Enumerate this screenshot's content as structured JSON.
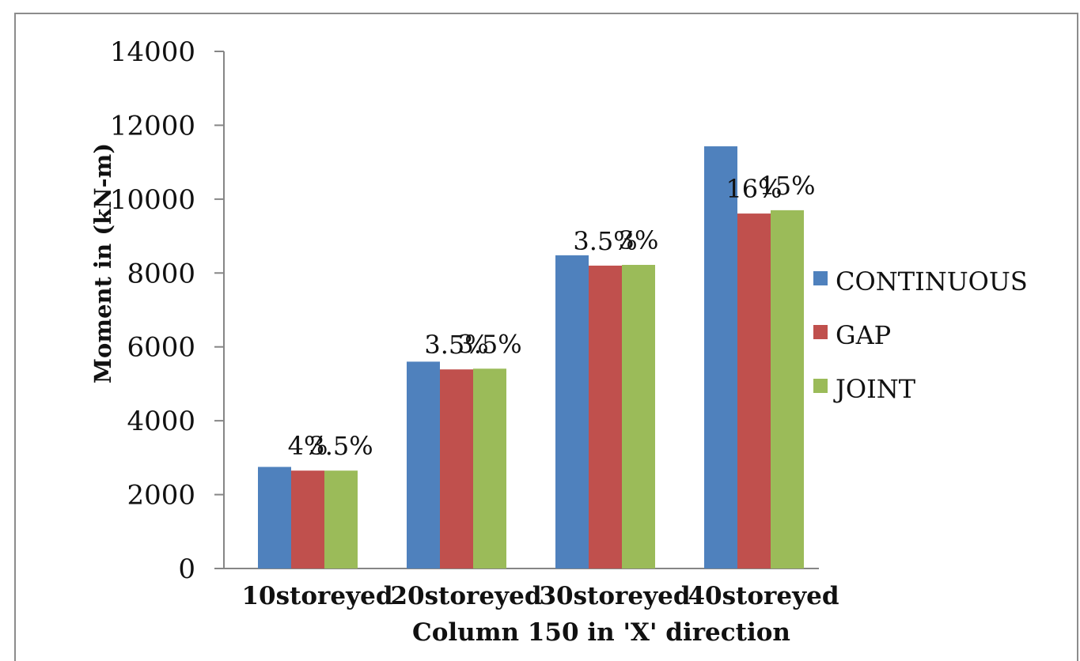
{
  "chart_data": {
    "type": "bar",
    "title": "",
    "xlabel": "Column 150 in 'X' direction",
    "ylabel": "Moment in (kN-m)",
    "ylim": [
      0,
      14000
    ],
    "yticks": [
      0,
      2000,
      4000,
      6000,
      8000,
      10000,
      12000,
      14000
    ],
    "categories": [
      "10storeyed",
      "20storeyed",
      "30storeyed",
      "40storeyed"
    ],
    "series": [
      {
        "name": "CONTINUOUS",
        "color": "#4F81BD",
        "values": [
          2750,
          5600,
          8480,
          11430
        ]
      },
      {
        "name": "GAP",
        "color": "#C0504D",
        "values": [
          2650,
          5390,
          8200,
          9610
        ]
      },
      {
        "name": "JOINT",
        "color": "#9BBB59",
        "values": [
          2650,
          5410,
          8220,
          9700
        ]
      }
    ],
    "annotations": [
      {
        "category": 0,
        "series": 1,
        "text": "4%"
      },
      {
        "category": 0,
        "series": 2,
        "text": "3.5%"
      },
      {
        "category": 1,
        "series": 1,
        "text": "3.5%"
      },
      {
        "category": 1,
        "series": 2,
        "text": "3.5%"
      },
      {
        "category": 2,
        "series": 1,
        "text": "3.5%"
      },
      {
        "category": 2,
        "series": 2,
        "text": "3%"
      },
      {
        "category": 3,
        "series": 1,
        "text": "16%"
      },
      {
        "category": 3,
        "series": 2,
        "text": "15%"
      }
    ],
    "grid": false,
    "legend": "right"
  }
}
